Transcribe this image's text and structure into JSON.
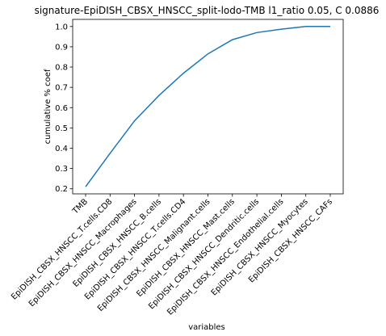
{
  "chart_data": {
    "type": "line",
    "title": "signature-EpiDISH_CBSX_HNSCC_split-lodo-TMB l1_ratio 0.05, C 0.0886",
    "xlabel": "variables",
    "ylabel": "cumulative % coef",
    "categories": [
      "TMB",
      "EpiDISH_CBSX_HNSCC_T.cells.CD8",
      "EpiDISH_CBSX_HNSCC_Macrophages",
      "EpiDISH_CBSX_HNSCC_B.cells",
      "EpiDISH_CBSX_HNSCC_T.cells.CD4",
      "EpiDISH_CBSX_HNSCC_Malignant.cells",
      "EpiDISH_CBSX_HNSCC_Mast.cells",
      "EpiDISH_CBSX_HNSCC_Dendritic.cells",
      "EpiDISH_CBSX_HNSCC_Endothelial.cells",
      "EpiDISH_CBSX_HNSCC_Myocytes",
      "EpiDISH_CBSX_HNSCC_CAFs"
    ],
    "values": [
      0.21,
      0.375,
      0.535,
      0.66,
      0.77,
      0.865,
      0.935,
      0.97,
      0.987,
      1.0,
      1.0
    ],
    "ylim": [
      0.175,
      1.035
    ],
    "yticks": [
      0.2,
      0.3,
      0.4,
      0.5,
      0.6,
      0.7,
      0.8,
      0.9,
      1.0
    ],
    "ytick_labels": [
      "0.2",
      "0.3",
      "0.4",
      "0.5",
      "0.6",
      "0.7",
      "0.8",
      "0.9",
      "1.0"
    ],
    "line_color": "#1f77b4",
    "grid": false,
    "legend": "none"
  }
}
